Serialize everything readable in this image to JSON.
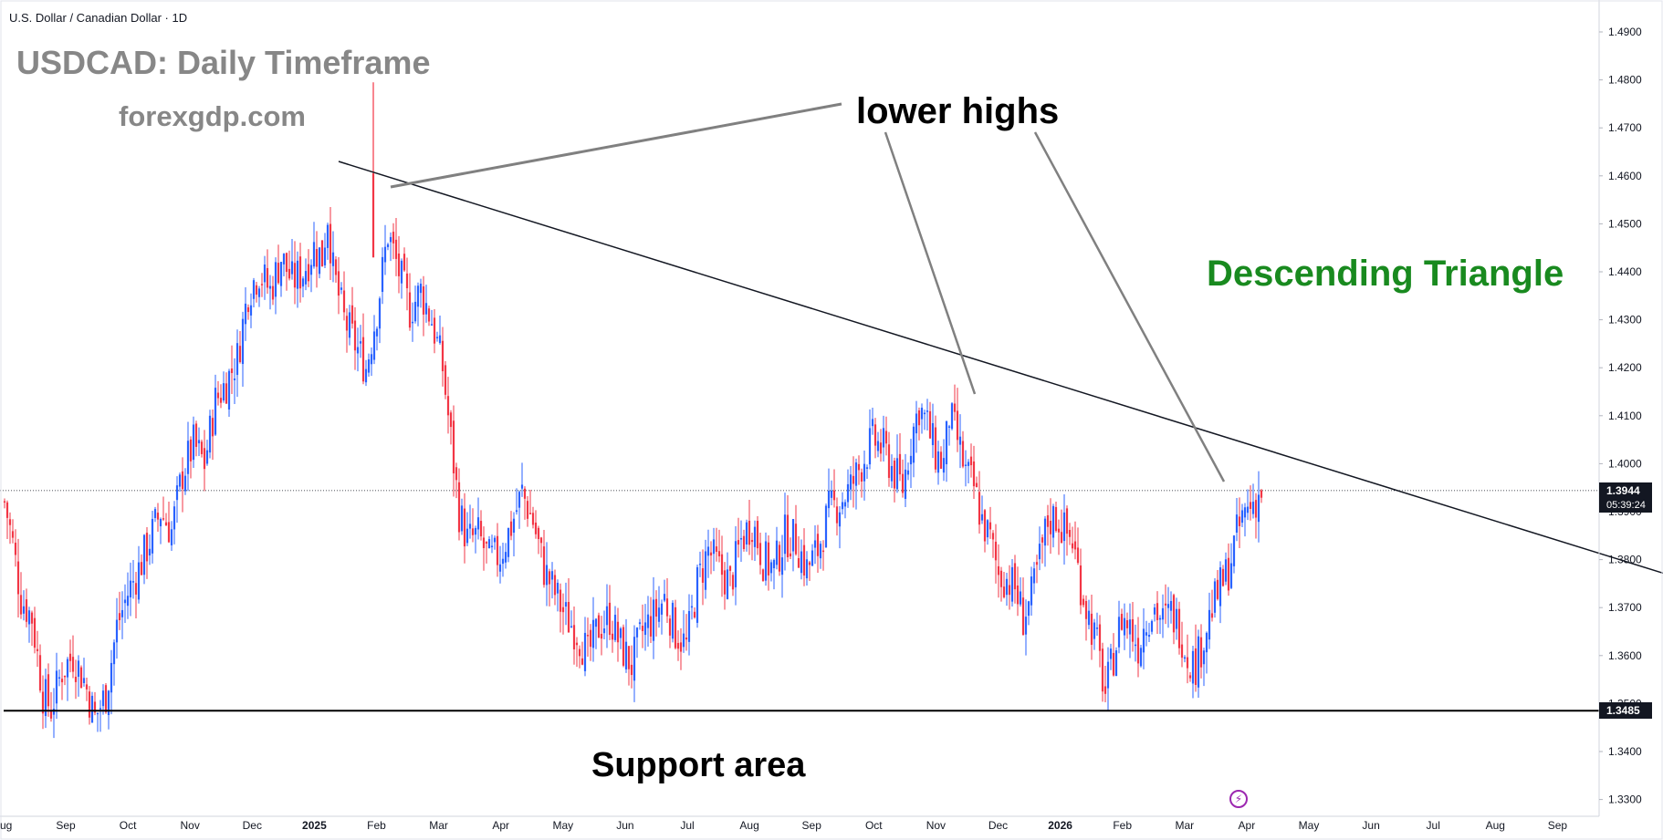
{
  "header": {
    "symbol": "U.S. Dollar / Canadian Dollar · 1D"
  },
  "annotations": {
    "title": "USDCAD: Daily Timeframe",
    "site": "forexgdp.com",
    "lower_highs": "lower highs",
    "pattern": "Descending Triangle",
    "support": "Support area"
  },
  "price_axis": {
    "current_price": "1.3944",
    "countdown": "05:39:24",
    "support_price": "1.3485"
  },
  "colors": {
    "up_candle": "#2962ff",
    "down_candle": "#f23645",
    "trendline": "#131722",
    "pattern_text": "#198a1f",
    "title_text": "#878787",
    "pointer_lines": "#808080"
  },
  "icons": {
    "bolt": "lightning-bolt-icon"
  },
  "chart_data": {
    "type": "candlestick",
    "title": "USDCAD: Daily Timeframe",
    "subtitle": "U.S. Dollar / Canadian Dollar · 1D",
    "xlabel": "",
    "ylabel": "",
    "ylim": [
      1.3275,
      1.4925
    ],
    "x_ticks": [
      "Sep",
      "Oct",
      "Nov",
      "Dec",
      "2025",
      "Feb",
      "Mar",
      "Apr",
      "May",
      "Jun",
      "Jul",
      "Aug",
      "Sep",
      "Oct",
      "Nov",
      "Dec",
      "2026",
      "Feb",
      "Mar",
      "Apr",
      "May",
      "Jun",
      "Jul",
      "Aug",
      "Sep"
    ],
    "y_ticks": [
      "1.4900",
      "1.4800",
      "1.4700",
      "1.4600",
      "1.4500",
      "1.4400",
      "1.4300",
      "1.4200",
      "1.4100",
      "1.4000",
      "1.3900",
      "1.3800",
      "1.3700",
      "1.3600",
      "1.3500",
      "1.3400",
      "1.3300"
    ],
    "price_path": [
      [
        0,
        1.392
      ],
      [
        5,
        1.385
      ],
      [
        12,
        1.372
      ],
      [
        20,
        1.368
      ],
      [
        28,
        1.352
      ],
      [
        34,
        1.349
      ],
      [
        42,
        1.357
      ],
      [
        50,
        1.36
      ],
      [
        58,
        1.355
      ],
      [
        66,
        1.347
      ],
      [
        74,
        1.352
      ],
      [
        82,
        1.366
      ],
      [
        90,
        1.373
      ],
      [
        98,
        1.378
      ],
      [
        106,
        1.384
      ],
      [
        114,
        1.39
      ],
      [
        122,
        1.386
      ],
      [
        130,
        1.398
      ],
      [
        138,
        1.404
      ],
      [
        146,
        1.4
      ],
      [
        154,
        1.413
      ],
      [
        162,
        1.417
      ],
      [
        170,
        1.422
      ],
      [
        178,
        1.436
      ],
      [
        186,
        1.44
      ],
      [
        194,
        1.436
      ],
      [
        202,
        1.443
      ],
      [
        210,
        1.438
      ],
      [
        218,
        1.44
      ],
      [
        226,
        1.445
      ],
      [
        232,
        1.443
      ],
      [
        236,
        1.452
      ],
      [
        240,
        1.44
      ],
      [
        248,
        1.43
      ],
      [
        256,
        1.425
      ],
      [
        264,
        1.42
      ],
      [
        272,
        1.432
      ],
      [
        280,
        1.448
      ],
      [
        288,
        1.44
      ],
      [
        296,
        1.432
      ],
      [
        304,
        1.436
      ],
      [
        312,
        1.43
      ],
      [
        320,
        1.42
      ],
      [
        326,
        1.405
      ],
      [
        332,
        1.39
      ],
      [
        338,
        1.384
      ],
      [
        346,
        1.385
      ],
      [
        354,
        1.38
      ],
      [
        362,
        1.381
      ],
      [
        370,
        1.387
      ],
      [
        378,
        1.394
      ],
      [
        386,
        1.388
      ],
      [
        394,
        1.378
      ],
      [
        402,
        1.373
      ],
      [
        410,
        1.368
      ],
      [
        418,
        1.365
      ],
      [
        426,
        1.36
      ],
      [
        434,
        1.366
      ],
      [
        442,
        1.368
      ],
      [
        450,
        1.362
      ],
      [
        458,
        1.358
      ],
      [
        466,
        1.365
      ],
      [
        474,
        1.368
      ],
      [
        482,
        1.372
      ],
      [
        490,
        1.365
      ],
      [
        498,
        1.362
      ],
      [
        506,
        1.375
      ],
      [
        514,
        1.382
      ],
      [
        522,
        1.378
      ],
      [
        530,
        1.375
      ],
      [
        538,
        1.384
      ],
      [
        546,
        1.388
      ],
      [
        554,
        1.38
      ],
      [
        562,
        1.378
      ],
      [
        570,
        1.385
      ],
      [
        578,
        1.384
      ],
      [
        586,
        1.378
      ],
      [
        594,
        1.382
      ],
      [
        602,
        1.39
      ],
      [
        610,
        1.392
      ],
      [
        618,
        1.395
      ],
      [
        626,
        1.4
      ],
      [
        634,
        1.405
      ],
      [
        642,
        1.403
      ],
      [
        650,
        1.398
      ],
      [
        656,
        1.395
      ],
      [
        662,
        1.405
      ],
      [
        668,
        1.412
      ],
      [
        674,
        1.408
      ],
      [
        680,
        1.402
      ],
      [
        686,
        1.4
      ],
      [
        690,
        1.41
      ],
      [
        696,
        1.405
      ],
      [
        702,
        1.398
      ],
      [
        708,
        1.395
      ],
      [
        714,
        1.388
      ],
      [
        720,
        1.384
      ],
      [
        726,
        1.377
      ],
      [
        732,
        1.376
      ],
      [
        738,
        1.374
      ],
      [
        744,
        1.368
      ],
      [
        750,
        1.372
      ],
      [
        756,
        1.38
      ],
      [
        762,
        1.388
      ],
      [
        768,
        1.389
      ],
      [
        774,
        1.386
      ],
      [
        780,
        1.384
      ],
      [
        786,
        1.375
      ],
      [
        792,
        1.368
      ],
      [
        798,
        1.362
      ],
      [
        804,
        1.352
      ],
      [
        810,
        1.36
      ],
      [
        816,
        1.368
      ],
      [
        822,
        1.366
      ],
      [
        828,
        1.362
      ],
      [
        834,
        1.368
      ],
      [
        840,
        1.37
      ],
      [
        846,
        1.367
      ],
      [
        852,
        1.369
      ],
      [
        858,
        1.366
      ],
      [
        864,
        1.36
      ],
      [
        870,
        1.358
      ],
      [
        876,
        1.364
      ],
      [
        882,
        1.37
      ],
      [
        888,
        1.374
      ],
      [
        894,
        1.378
      ],
      [
        900,
        1.385
      ],
      [
        906,
        1.39
      ],
      [
        912,
        1.392
      ],
      [
        918,
        1.394
      ]
    ],
    "trendline": {
      "start": [
        244,
        1.463
      ],
      "end": [
        1315,
        1.368
      ]
    },
    "support_level": 1.3485,
    "current_price": 1.3944
  }
}
